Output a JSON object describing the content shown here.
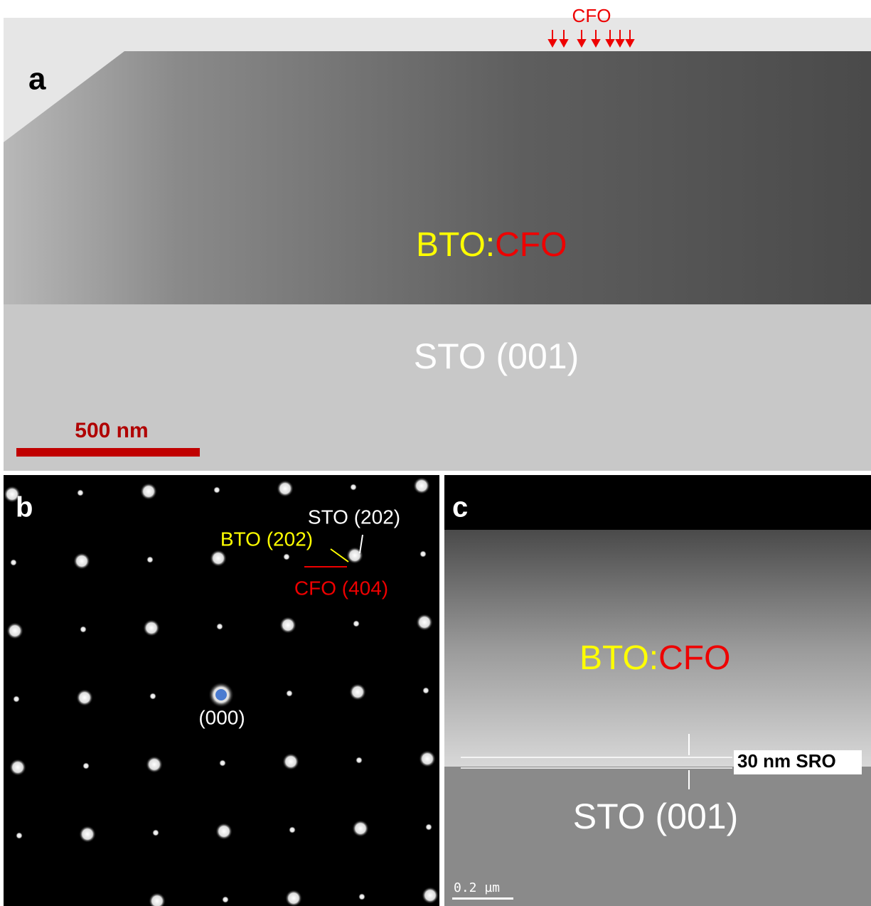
{
  "panels": [
    {
      "label": "a",
      "top_label": "CFO",
      "film_label": {
        "first": "BTO:",
        "second": "CFO"
      },
      "substrate_label": "STO (001)",
      "scale_bar": "500 nm"
    },
    {
      "label": "b",
      "spots": {
        "sto": "STO (202)",
        "bto": "BTO (202)",
        "cfo": "CFO (404)",
        "origin": "(000)"
      }
    },
    {
      "label": "c",
      "film_label": {
        "first": "BTO:",
        "second": "CFO"
      },
      "layer_label": "30 nm SRO",
      "substrate_label": "STO (001)",
      "scale_bar": "0.2 µm"
    }
  ]
}
